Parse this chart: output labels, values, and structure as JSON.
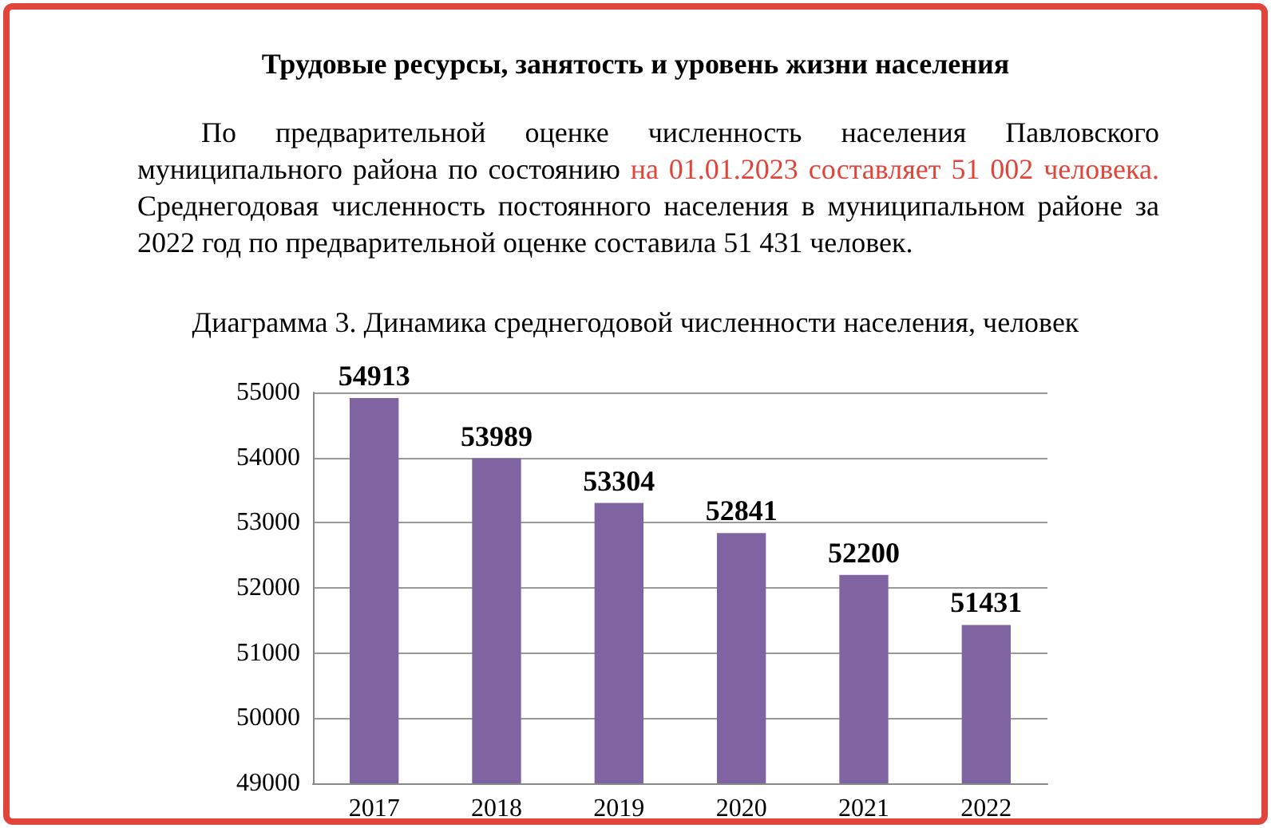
{
  "chart_data": {
    "type": "bar",
    "title": "Диаграмма 3. Динамика среднегодовой численности населения, человек",
    "annotations": [
      "Трудовые ресурсы, занятость и уровень жизни населения",
      "По предварительной оценке численность населения Павловского муниципального района по состоянию ",
      "на 01.01.2023 составляет 51 002 человека.",
      " Среднегодовая численность постоянного населения в муниципальном районе за 2022 год по предварительной оценке составила 51 431 человек."
    ],
    "categories": [
      "2017",
      "2018",
      "2019",
      "2020",
      "2021",
      "2022"
    ],
    "values": [
      54913,
      53989,
      53304,
      52841,
      52200,
      51431
    ],
    "color": "#8064a2",
    "ylim": [
      49000,
      55000
    ],
    "yticks": [
      49000,
      50000,
      51000,
      52000,
      53000,
      54000,
      55000
    ],
    "grid": "y",
    "data_labels": true
  }
}
